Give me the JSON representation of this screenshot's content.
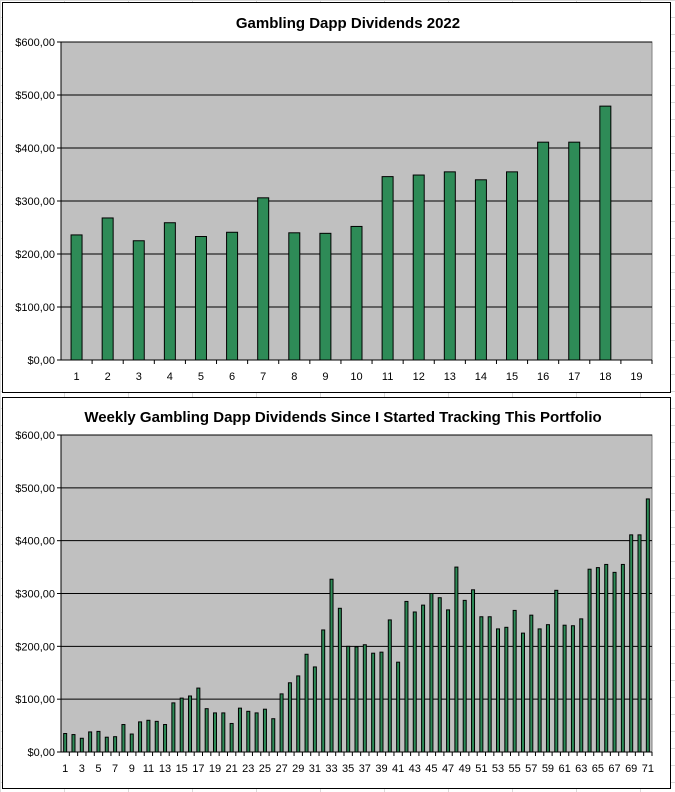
{
  "chart_data": [
    {
      "type": "bar",
      "title": "Gambling Dapp Dividends 2022",
      "xlabel": "",
      "ylabel": "",
      "categories": [
        "1",
        "2",
        "3",
        "4",
        "5",
        "6",
        "7",
        "8",
        "9",
        "10",
        "11",
        "12",
        "13",
        "14",
        "15",
        "16",
        "17",
        "18",
        "19"
      ],
      "y_tick_labels": [
        "$0,00",
        "$100,00",
        "$200,00",
        "$300,00",
        "$400,00",
        "$500,00",
        "$600,00"
      ],
      "values": [
        236,
        268,
        225,
        259,
        233,
        241,
        306,
        240,
        239,
        252,
        346,
        349,
        355,
        340,
        355,
        411,
        411,
        479,
        null
      ],
      "ylim": [
        0,
        600
      ],
      "grid": true,
      "legend": "none",
      "bar_color": "#2e8b57",
      "plot_background": "#c0c0c0"
    },
    {
      "type": "bar",
      "title": "Weekly Gambling Dapp Dividends Since I Started Tracking This Portfolio",
      "xlabel": "",
      "ylabel": "",
      "categories": [
        "1",
        "2",
        "3",
        "4",
        "5",
        "6",
        "7",
        "8",
        "9",
        "10",
        "11",
        "12",
        "13",
        "14",
        "15",
        "16",
        "17",
        "18",
        "19",
        "20",
        "21",
        "22",
        "23",
        "24",
        "25",
        "26",
        "27",
        "28",
        "29",
        "30",
        "31",
        "32",
        "33",
        "34",
        "35",
        "36",
        "37",
        "38",
        "39",
        "40",
        "41",
        "42",
        "43",
        "44",
        "45",
        "46",
        "47",
        "48",
        "49",
        "50",
        "51",
        "52",
        "53",
        "54",
        "55",
        "56",
        "57",
        "58",
        "59",
        "60",
        "61",
        "62",
        "63",
        "64",
        "65",
        "66",
        "67",
        "68",
        "69",
        "70",
        "71"
      ],
      "x_tick_labels": [
        "1",
        "3",
        "5",
        "7",
        "9",
        "11",
        "13",
        "15",
        "17",
        "19",
        "21",
        "23",
        "25",
        "27",
        "29",
        "31",
        "33",
        "35",
        "37",
        "39",
        "41",
        "43",
        "45",
        "47",
        "49",
        "51",
        "53",
        "55",
        "57",
        "59",
        "61",
        "63",
        "65",
        "67",
        "69",
        "71"
      ],
      "y_tick_labels": [
        "$0,00",
        "$100,00",
        "$200,00",
        "$300,00",
        "$400,00",
        "$500,00",
        "$600,00"
      ],
      "values": [
        35,
        33,
        26,
        38,
        39,
        28,
        29,
        52,
        34,
        57,
        60,
        58,
        52,
        93,
        102,
        106,
        121,
        82,
        74,
        74,
        54,
        83,
        77,
        74,
        81,
        63,
        110,
        131,
        144,
        185,
        161,
        231,
        327,
        272,
        200,
        199,
        203,
        187,
        189,
        250,
        170,
        285,
        265,
        278,
        300,
        292,
        269,
        350,
        287,
        307,
        256,
        256,
        233,
        236,
        268,
        225,
        259,
        233,
        241,
        306,
        240,
        239,
        252,
        346,
        349,
        355,
        340,
        355,
        411,
        411,
        479
      ],
      "ylim": [
        0,
        600
      ],
      "grid": true,
      "legend": "none",
      "bar_color": "#2e8b57",
      "plot_background": "#c0c0c0"
    }
  ]
}
